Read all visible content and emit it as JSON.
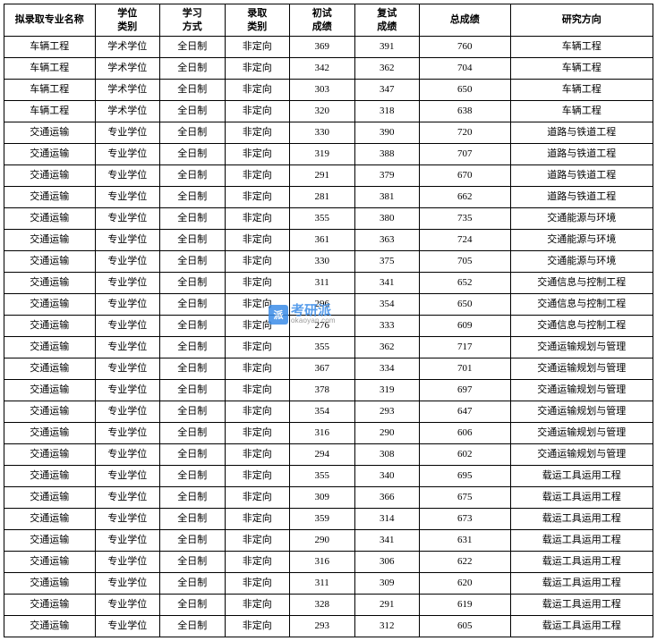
{
  "table": {
    "columns": [
      {
        "label": "拟录取专业名称",
        "width": "14%"
      },
      {
        "label": "学位\n类别",
        "width": "10%"
      },
      {
        "label": "学习\n方式",
        "width": "10%"
      },
      {
        "label": "录取\n类别",
        "width": "10%"
      },
      {
        "label": "初试\n成绩",
        "width": "10%"
      },
      {
        "label": "复试\n成绩",
        "width": "10%"
      },
      {
        "label": "总成绩",
        "width": "14%"
      },
      {
        "label": "研究方向",
        "width": "22%"
      }
    ],
    "rows": [
      [
        "车辆工程",
        "学术学位",
        "全日制",
        "非定向",
        "369",
        "391",
        "760",
        "车辆工程"
      ],
      [
        "车辆工程",
        "学术学位",
        "全日制",
        "非定向",
        "342",
        "362",
        "704",
        "车辆工程"
      ],
      [
        "车辆工程",
        "学术学位",
        "全日制",
        "非定向",
        "303",
        "347",
        "650",
        "车辆工程"
      ],
      [
        "车辆工程",
        "学术学位",
        "全日制",
        "非定向",
        "320",
        "318",
        "638",
        "车辆工程"
      ],
      [
        "交通运输",
        "专业学位",
        "全日制",
        "非定向",
        "330",
        "390",
        "720",
        "道路与铁道工程"
      ],
      [
        "交通运输",
        "专业学位",
        "全日制",
        "非定向",
        "319",
        "388",
        "707",
        "道路与铁道工程"
      ],
      [
        "交通运输",
        "专业学位",
        "全日制",
        "非定向",
        "291",
        "379",
        "670",
        "道路与铁道工程"
      ],
      [
        "交通运输",
        "专业学位",
        "全日制",
        "非定向",
        "281",
        "381",
        "662",
        "道路与铁道工程"
      ],
      [
        "交通运输",
        "专业学位",
        "全日制",
        "非定向",
        "355",
        "380",
        "735",
        "交通能源与环境"
      ],
      [
        "交通运输",
        "专业学位",
        "全日制",
        "非定向",
        "361",
        "363",
        "724",
        "交通能源与环境"
      ],
      [
        "交通运输",
        "专业学位",
        "全日制",
        "非定向",
        "330",
        "375",
        "705",
        "交通能源与环境"
      ],
      [
        "交通运输",
        "专业学位",
        "全日制",
        "非定向",
        "311",
        "341",
        "652",
        "交通信息与控制工程"
      ],
      [
        "交通运输",
        "专业学位",
        "全日制",
        "非定向",
        "296",
        "354",
        "650",
        "交通信息与控制工程"
      ],
      [
        "交通运输",
        "专业学位",
        "全日制",
        "非定向",
        "276",
        "333",
        "609",
        "交通信息与控制工程"
      ],
      [
        "交通运输",
        "专业学位",
        "全日制",
        "非定向",
        "355",
        "362",
        "717",
        "交通运输规划与管理"
      ],
      [
        "交通运输",
        "专业学位",
        "全日制",
        "非定向",
        "367",
        "334",
        "701",
        "交通运输规划与管理"
      ],
      [
        "交通运输",
        "专业学位",
        "全日制",
        "非定向",
        "378",
        "319",
        "697",
        "交通运输规划与管理"
      ],
      [
        "交通运输",
        "专业学位",
        "全日制",
        "非定向",
        "354",
        "293",
        "647",
        "交通运输规划与管理"
      ],
      [
        "交通运输",
        "专业学位",
        "全日制",
        "非定向",
        "316",
        "290",
        "606",
        "交通运输规划与管理"
      ],
      [
        "交通运输",
        "专业学位",
        "全日制",
        "非定向",
        "294",
        "308",
        "602",
        "交通运输规划与管理"
      ],
      [
        "交通运输",
        "专业学位",
        "全日制",
        "非定向",
        "355",
        "340",
        "695",
        "载运工具运用工程"
      ],
      [
        "交通运输",
        "专业学位",
        "全日制",
        "非定向",
        "309",
        "366",
        "675",
        "载运工具运用工程"
      ],
      [
        "交通运输",
        "专业学位",
        "全日制",
        "非定向",
        "359",
        "314",
        "673",
        "载运工具运用工程"
      ],
      [
        "交通运输",
        "专业学位",
        "全日制",
        "非定向",
        "290",
        "341",
        "631",
        "载运工具运用工程"
      ],
      [
        "交通运输",
        "专业学位",
        "全日制",
        "非定向",
        "316",
        "306",
        "622",
        "载运工具运用工程"
      ],
      [
        "交通运输",
        "专业学位",
        "全日制",
        "非定向",
        "311",
        "309",
        "620",
        "载运工具运用工程"
      ],
      [
        "交通运输",
        "专业学位",
        "全日制",
        "非定向",
        "328",
        "291",
        "619",
        "载运工具运用工程"
      ],
      [
        "交通运输",
        "专业学位",
        "全日制",
        "非定向",
        "293",
        "312",
        "605",
        "载运工具运用工程"
      ]
    ],
    "border_color": "#000000",
    "background_color": "#ffffff",
    "font_size": 11,
    "header_font_weight": "bold",
    "cell_font_weight": "normal",
    "font_family": "SimSun"
  },
  "watermark": {
    "badge_text": "派",
    "main_text": "考研派",
    "sub_text": "okaoyan.com",
    "badge_bg": "#3b8de8",
    "badge_fg": "#ffffff",
    "main_color": "#3b8de8",
    "sub_color": "#888888"
  }
}
